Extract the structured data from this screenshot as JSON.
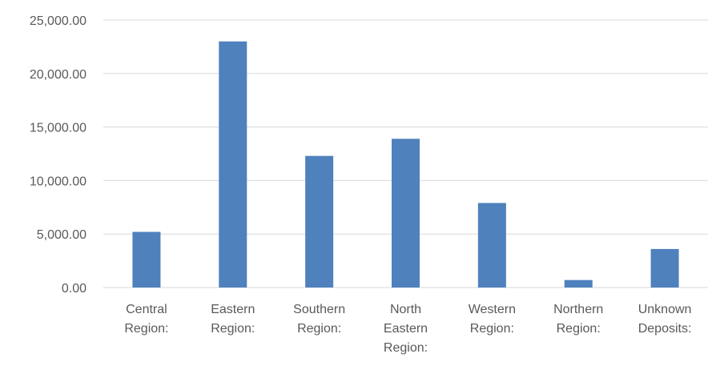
{
  "chart_data": {
    "type": "bar",
    "title": "",
    "xlabel": "",
    "ylabel": "",
    "categories": [
      [
        "Central",
        "Region:"
      ],
      [
        "Eastern",
        "Region:"
      ],
      [
        "Southern",
        "Region:"
      ],
      [
        "North",
        "Eastern",
        "Region:"
      ],
      [
        "Western",
        "Region:"
      ],
      [
        "Northern",
        "Region:"
      ],
      [
        "Unknown",
        "Deposits:"
      ]
    ],
    "series": [
      {
        "values": [
          5200,
          23000,
          12300,
          13900,
          7900,
          700,
          3600
        ]
      }
    ],
    "ylim": [
      0,
      25000
    ],
    "yticks": [
      "0.00",
      "5,000.00",
      "10,000.00",
      "15,000.00",
      "20,000.00",
      "25,000.00"
    ],
    "ytick_values": [
      0,
      5000,
      10000,
      15000,
      20000,
      25000
    ],
    "grid": true,
    "legend": "none",
    "bar_color": "#4f81bd"
  }
}
